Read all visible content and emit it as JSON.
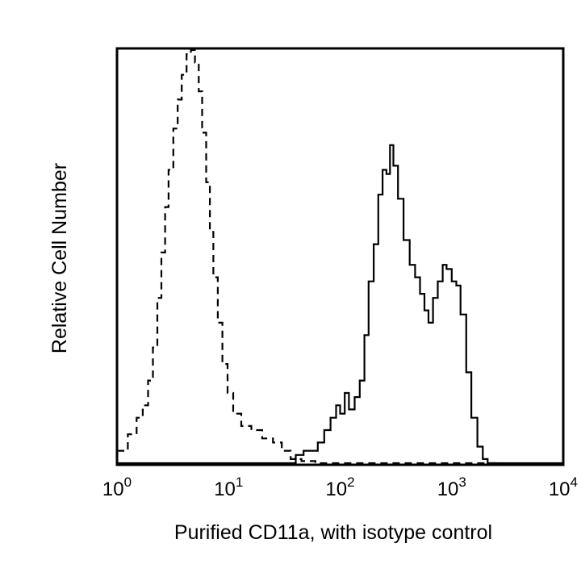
{
  "chart_data": {
    "type": "line",
    "title": "",
    "xlabel": "Purified CD11a, with isotype control",
    "ylabel": "Relative Cell Number",
    "x_scale": "log",
    "xlim": [
      1,
      10000
    ],
    "ylim": [
      0,
      100
    ],
    "grid": false,
    "legend": "none",
    "x_ticks": [
      {
        "value": 1,
        "base": "10",
        "exp": "0"
      },
      {
        "value": 10,
        "base": "10",
        "exp": "1"
      },
      {
        "value": 100,
        "base": "10",
        "exp": "2"
      },
      {
        "value": 1000,
        "base": "10",
        "exp": "3"
      },
      {
        "value": 10000,
        "base": "10",
        "exp": "4"
      }
    ],
    "series": [
      {
        "style": "dashed",
        "color": "#000000",
        "points": [
          [
            1.0,
            3
          ],
          [
            1.25,
            7
          ],
          [
            1.5,
            11
          ],
          [
            1.7,
            14
          ],
          [
            1.9,
            20
          ],
          [
            2.1,
            28
          ],
          [
            2.3,
            40
          ],
          [
            2.5,
            51
          ],
          [
            2.7,
            62
          ],
          [
            2.9,
            71
          ],
          [
            3.2,
            81
          ],
          [
            3.5,
            88
          ],
          [
            3.8,
            94
          ],
          [
            4.2,
            99
          ],
          [
            4.6,
            100
          ],
          [
            5.0,
            97
          ],
          [
            5.4,
            90
          ],
          [
            5.8,
            80
          ],
          [
            6.3,
            68
          ],
          [
            6.8,
            56
          ],
          [
            7.3,
            45
          ],
          [
            8.0,
            34
          ],
          [
            8.8,
            24
          ],
          [
            9.8,
            17
          ],
          [
            11.0,
            12
          ],
          [
            13.0,
            9
          ],
          [
            16.0,
            8
          ],
          [
            20.0,
            6
          ],
          [
            25.0,
            5
          ],
          [
            30.0,
            3
          ],
          [
            36.0,
            1
          ],
          [
            45.0,
            0.5
          ],
          [
            60.0,
            0
          ],
          [
            100.0,
            0
          ],
          [
            1000.0,
            0
          ],
          [
            2500.0,
            0
          ]
        ]
      },
      {
        "style": "solid",
        "color": "#000000",
        "points": [
          [
            1.0,
            0
          ],
          [
            10.0,
            0
          ],
          [
            35.0,
            0
          ],
          [
            40.0,
            2
          ],
          [
            47.0,
            3
          ],
          [
            55.0,
            3
          ],
          [
            63.0,
            5
          ],
          [
            72.0,
            8
          ],
          [
            82.0,
            11
          ],
          [
            92.0,
            14
          ],
          [
            100.0,
            12
          ],
          [
            110.0,
            17
          ],
          [
            120.0,
            13
          ],
          [
            135.0,
            16
          ],
          [
            150.0,
            20
          ],
          [
            165.0,
            31
          ],
          [
            180.0,
            44
          ],
          [
            200.0,
            53
          ],
          [
            220.0,
            65
          ],
          [
            240.0,
            71
          ],
          [
            260.0,
            70
          ],
          [
            280.0,
            77
          ],
          [
            300.0,
            72
          ],
          [
            330.0,
            64
          ],
          [
            370.0,
            54
          ],
          [
            420.0,
            48
          ],
          [
            470.0,
            45
          ],
          [
            520.0,
            41
          ],
          [
            570.0,
            37
          ],
          [
            620.0,
            34
          ],
          [
            680.0,
            40
          ],
          [
            750.0,
            44
          ],
          [
            830.0,
            48
          ],
          [
            900.0,
            47
          ],
          [
            1000.0,
            44
          ],
          [
            1100.0,
            43
          ],
          [
            1200.0,
            36
          ],
          [
            1350.0,
            22
          ],
          [
            1500.0,
            11
          ],
          [
            1700.0,
            4
          ],
          [
            1900.0,
            1
          ],
          [
            2100.0,
            0
          ],
          [
            3000.0,
            0
          ],
          [
            10000.0,
            0
          ]
        ]
      }
    ]
  }
}
